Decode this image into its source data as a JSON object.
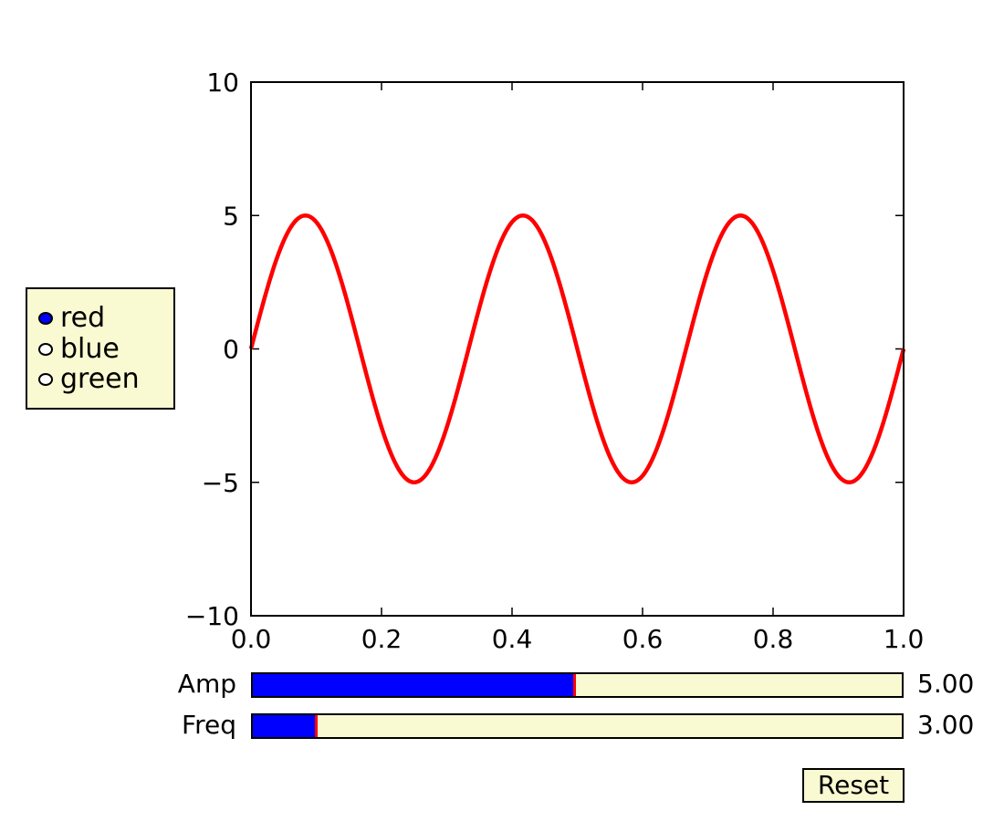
{
  "radio": {
    "options": [
      "red",
      "blue",
      "green"
    ],
    "selected": "red"
  },
  "sliders": {
    "amp": {
      "label": "Amp",
      "value": 5.0,
      "value_text": "5.00",
      "min": 0.1,
      "max": 10.0
    },
    "freq": {
      "label": "Freq",
      "value": 3.0,
      "value_text": "3.00",
      "min": 0.1,
      "max": 30.0
    }
  },
  "reset": {
    "label": "Reset"
  },
  "colors": {
    "panel_bg": "#fafad2",
    "slider_fill": "#0000ff",
    "slider_handle": "#ff0000",
    "radio_selected": "#0000ff"
  },
  "chart_data": {
    "type": "line",
    "title": "",
    "xlabel": "",
    "ylabel": "",
    "xlim": [
      0.0,
      1.0
    ],
    "ylim": [
      -10,
      10
    ],
    "x_ticks": [
      "0.0",
      "0.2",
      "0.4",
      "0.6",
      "0.8",
      "1.0"
    ],
    "y_ticks": [
      "10",
      "5",
      "0",
      "−5",
      "−10"
    ],
    "grid": false,
    "series": [
      {
        "color": "#ff0000",
        "formula": "y = 5*sin(2*pi*3*x)",
        "amplitude": 5.0,
        "frequency": 3.0,
        "x": [
          0.0,
          0.0833,
          0.1667,
          0.25,
          0.3333,
          0.4167,
          0.5,
          0.5833,
          0.6667,
          0.75,
          0.8333,
          0.9167,
          1.0
        ],
        "y": [
          0,
          5,
          0,
          -5,
          0,
          5,
          0,
          -5,
          0,
          5,
          0,
          -5,
          0
        ]
      }
    ]
  }
}
